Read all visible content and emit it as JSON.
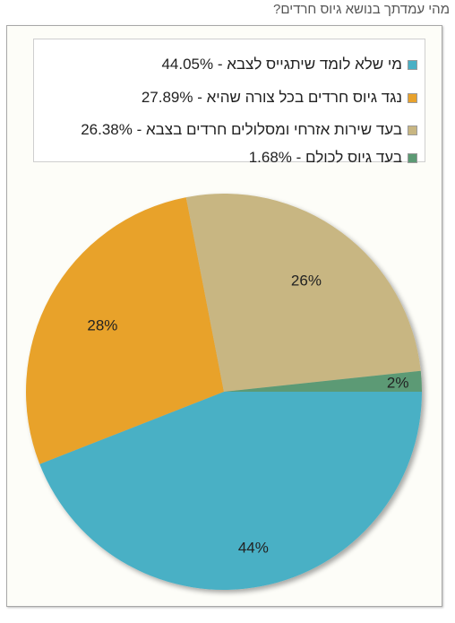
{
  "question": "מהי עמדתך בנושא גיוס חרדים?",
  "chart_data": {
    "type": "pie",
    "slices": [
      {
        "legend": "מי שלא לומד שיתגייס לצבא - 44.05%",
        "value": 44.05,
        "label": "44%",
        "color": "#4ab0c5"
      },
      {
        "legend": "נגד גיוס חרדים בכל צורה שהיא - 27.89%",
        "value": 27.89,
        "label": "28%",
        "color": "#e8a22c"
      },
      {
        "legend": "בעד שירות אזרחי ומסלולים חרדים בצבא - 26.38%",
        "value": 26.38,
        "label": "26%",
        "color": "#c8b682"
      },
      {
        "legend": "בעד גיוס לכולם - 1.68%",
        "value": 1.68,
        "label": "2%",
        "color": "#5c9a74"
      }
    ]
  }
}
